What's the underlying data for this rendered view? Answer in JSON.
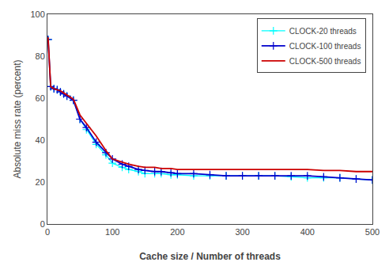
{
  "chart_data": {
    "type": "line",
    "xlabel": "Cache size / Number of threads",
    "ylabel": "Absolute miss rate (percent)",
    "x": [
      1,
      5,
      10,
      15,
      20,
      25,
      30,
      40,
      50,
      60,
      75,
      90,
      100,
      115,
      125,
      140,
      150,
      165,
      175,
      190,
      200,
      225,
      250,
      275,
      300,
      325,
      350,
      375,
      400,
      425,
      450,
      475,
      500
    ],
    "series": [
      {
        "name": "CLOCK-20 threads",
        "color": "#00FFFF",
        "marker": "plus",
        "values": [
          88,
          65.5,
          64.5,
          64,
          63,
          62,
          61,
          59,
          50,
          45,
          38,
          33,
          29,
          27,
          26,
          25,
          24,
          24,
          24,
          23.5,
          23.5,
          23,
          23,
          23,
          23,
          23,
          23,
          22.5,
          22,
          22,
          22,
          21.5,
          21
        ]
      },
      {
        "name": "CLOCK-100 threads",
        "color": "#0000CC",
        "marker": "plus",
        "values": [
          88,
          65.5,
          64.5,
          64,
          63,
          62,
          61,
          59,
          50,
          46,
          39,
          34,
          31,
          28.5,
          27.5,
          26,
          25.5,
          25,
          25,
          24.5,
          24,
          24,
          23.5,
          23,
          23,
          23,
          23,
          23,
          23,
          22.5,
          22,
          21.5,
          21
        ]
      },
      {
        "name": "CLOCK-500 threads",
        "color": "#CC0000",
        "marker": "none",
        "values": [
          89,
          65.5,
          64.5,
          64,
          63.5,
          62.5,
          61.5,
          59.5,
          52,
          48,
          42,
          35,
          31,
          29.5,
          28.5,
          27.5,
          27,
          27,
          26.5,
          26.5,
          26,
          26,
          26,
          26,
          26,
          26,
          26,
          26,
          26,
          25.5,
          25.5,
          25,
          25
        ]
      }
    ],
    "xlim": [
      0,
      500
    ],
    "ylim": [
      0,
      100
    ],
    "xticks": [
      0,
      100,
      200,
      300,
      400,
      500
    ],
    "yticks": [
      0,
      20,
      40,
      60,
      80,
      100
    ],
    "grid": false,
    "legend": "upper right"
  }
}
